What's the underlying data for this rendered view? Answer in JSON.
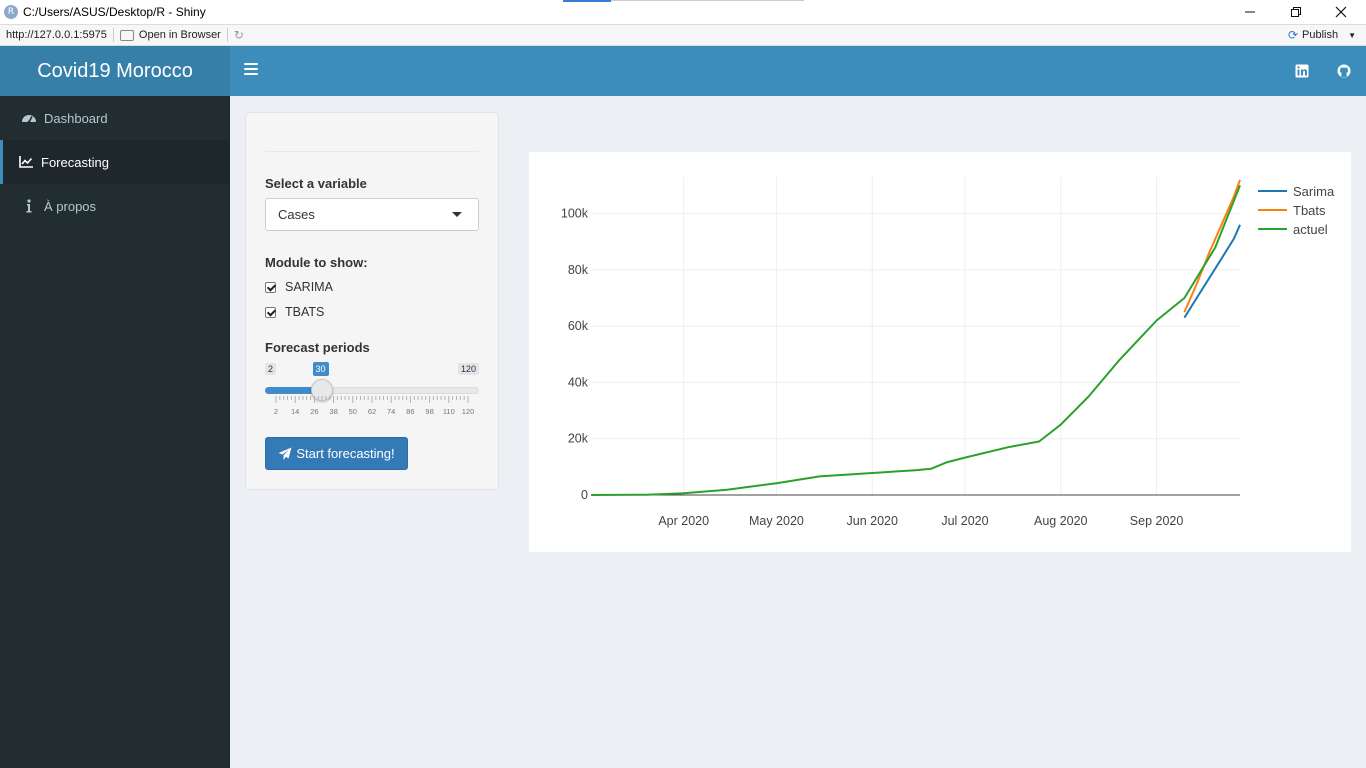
{
  "window": {
    "title": "C:/Users/ASUS/Desktop/R - Shiny",
    "app_icon_letter": "R"
  },
  "viewer_toolbar": {
    "url": "http://127.0.0.1:5975",
    "open_in_browser": "Open in Browser",
    "publish": "Publish"
  },
  "header": {
    "brand": "Covid19 Morocco",
    "icons": [
      "linkedin-icon",
      "github-icon"
    ]
  },
  "sidebar": {
    "items": [
      {
        "label": "Dashboard",
        "icon": "tachometer-icon",
        "active": false
      },
      {
        "label": "Forecasting",
        "icon": "line-chart-icon",
        "active": true
      },
      {
        "label": "À propos",
        "icon": "info-icon",
        "active": false
      }
    ]
  },
  "controls": {
    "variable_label": "Select a variable",
    "variable_value": "Cases",
    "module_label": "Module to show:",
    "modules": [
      {
        "label": "SARIMA",
        "checked": true
      },
      {
        "label": "TBATS",
        "checked": true
      }
    ],
    "periods_label": "Forecast periods",
    "periods": {
      "min": "2",
      "max": "120",
      "value": "30",
      "value_fraction": 0.237
    },
    "slider_ticks": [
      "2",
      "14",
      "26",
      "38",
      "50",
      "62",
      "74",
      "86",
      "98",
      "110",
      "120"
    ],
    "start_button": "Start forecasting!"
  },
  "chart_data": {
    "type": "line",
    "title": "",
    "xlabel": "",
    "ylabel": "",
    "x_ticks": [
      "Apr 2020",
      "May 2020",
      "Jun 2020",
      "Jul 2020",
      "Aug 2020",
      "Sep 2020"
    ],
    "y_ticks": [
      "0",
      "20k",
      "40k",
      "60k",
      "80k",
      "100k"
    ],
    "ylim": [
      0,
      113000
    ],
    "xlim": [
      "2020-03-02",
      "2020-09-28"
    ],
    "legend_position": "top-right",
    "grid": true,
    "series": [
      {
        "name": "Sarima",
        "color": "#1f77b4",
        "x": [
          "2020-09-10",
          "2020-09-14",
          "2020-09-18",
          "2020-09-22",
          "2020-09-26",
          "2020-09-28"
        ],
        "y": [
          63000,
          70000,
          77000,
          84000,
          91000,
          96000
        ]
      },
      {
        "name": "Tbats",
        "color": "#ff7f0e",
        "x": [
          "2020-09-10",
          "2020-09-14",
          "2020-09-18",
          "2020-09-22",
          "2020-09-26",
          "2020-09-28"
        ],
        "y": [
          65000,
          75000,
          86000,
          96000,
          106000,
          112000
        ]
      },
      {
        "name": "actuel",
        "color": "#2ca02c",
        "x": [
          "2020-03-02",
          "2020-03-20",
          "2020-04-01",
          "2020-04-15",
          "2020-05-01",
          "2020-05-15",
          "2020-06-01",
          "2020-06-15",
          "2020-06-20",
          "2020-06-25",
          "2020-07-01",
          "2020-07-15",
          "2020-07-25",
          "2020-08-01",
          "2020-08-10",
          "2020-08-20",
          "2020-09-01",
          "2020-09-10",
          "2020-09-20",
          "2020-09-28"
        ],
        "y": [
          0,
          100,
          600,
          1900,
          4200,
          6600,
          7800,
          8800,
          9300,
          11600,
          13300,
          17000,
          19000,
          25000,
          35000,
          48000,
          62000,
          70000,
          88000,
          110000
        ]
      }
    ]
  }
}
